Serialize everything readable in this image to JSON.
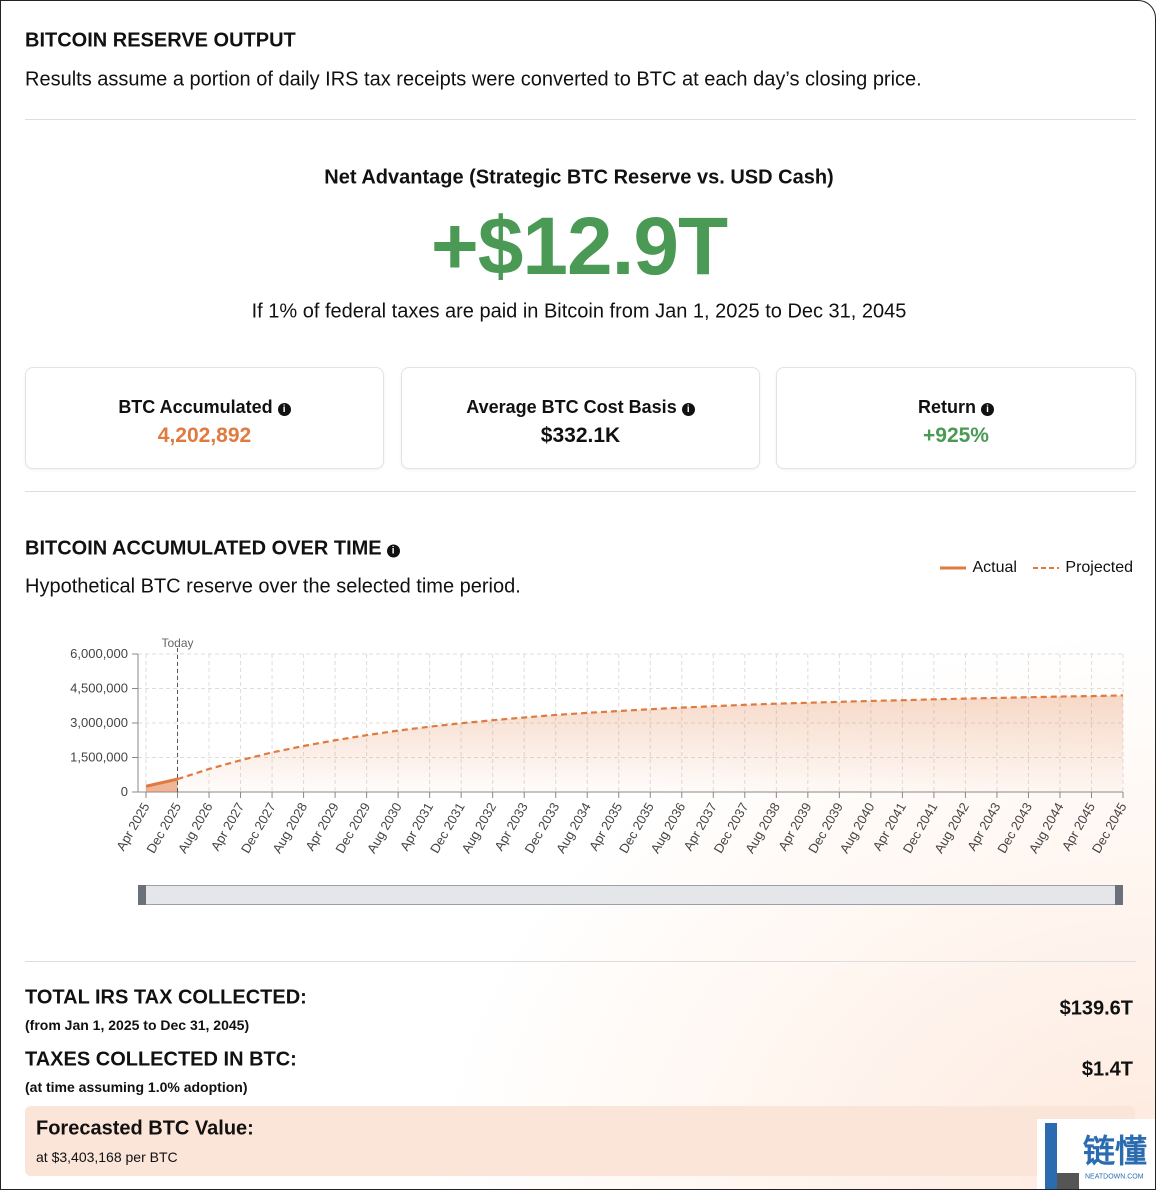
{
  "header": {
    "title": "BITCOIN RESERVE OUTPUT",
    "subtitle": "Results assume a portion of daily IRS tax receipts were converted to BTC at each day’s closing price."
  },
  "net_advantage": {
    "label": "Net Advantage (Strategic BTC Reserve vs. USD Cash)",
    "value": "+$12.9T",
    "note": "If 1% of federal taxes are paid in Bitcoin from Jan 1, 2025 to Dec 31, 2045"
  },
  "stats": [
    {
      "label": "BTC Accumulated",
      "value": "4,202,892"
    },
    {
      "label": "Average BTC Cost Basis",
      "value": "$332.1K"
    },
    {
      "label": "Return",
      "value": "+925%"
    }
  ],
  "chart_data": {
    "type": "line",
    "title": "BITCOIN ACCUMULATED OVER TIME",
    "subtitle": "Hypothetical BTC reserve over the selected time period.",
    "annotation": "Today",
    "categories": [
      "Apr 2025",
      "Dec 2025",
      "Aug 2026",
      "Apr 2027",
      "Dec 2027",
      "Aug 2028",
      "Apr 2029",
      "Dec 2029",
      "Aug 2030",
      "Apr 2031",
      "Dec 2031",
      "Aug 2032",
      "Apr 2033",
      "Dec 2033",
      "Aug 2034",
      "Apr 2035",
      "Dec 2035",
      "Aug 2036",
      "Apr 2037",
      "Dec 2037",
      "Aug 2038",
      "Apr 2039",
      "Dec 2039",
      "Aug 2040",
      "Apr 2041",
      "Dec 2041",
      "Aug 2042",
      "Apr 2043",
      "Dec 2043",
      "Aug 2044",
      "Apr 2045",
      "Dec 2045"
    ],
    "series": [
      {
        "name": "Actual",
        "color": "#e07a3f",
        "values": [
          250000,
          560000,
          null,
          null,
          null,
          null,
          null,
          null,
          null,
          null,
          null,
          null,
          null,
          null,
          null,
          null,
          null,
          null,
          null,
          null,
          null,
          null,
          null,
          null,
          null,
          null,
          null,
          null,
          null,
          null,
          null,
          null
        ]
      },
      {
        "name": "Projected",
        "color": "#e07a3f",
        "values": [
          null,
          560000,
          1000000,
          1380000,
          1720000,
          2000000,
          2250000,
          2470000,
          2670000,
          2840000,
          2990000,
          3120000,
          3240000,
          3350000,
          3440000,
          3520000,
          3600000,
          3670000,
          3730000,
          3790000,
          3840000,
          3880000,
          3920000,
          3960000,
          3990000,
          4030000,
          4060000,
          4090000,
          4120000,
          4150000,
          4170000,
          4200000
        ]
      }
    ],
    "ylim": [
      0,
      6000000
    ],
    "yticks": [
      0,
      {
        "value": 1500000,
        "label": "1,500,000"
      },
      {
        "value": 3000000,
        "label": "3,000,000"
      },
      {
        "value": 4500000,
        "label": "4,500,000"
      },
      {
        "value": 6000000,
        "label": "6,000,000"
      }
    ],
    "grid": true,
    "legend": "top-right"
  },
  "summary": [
    {
      "label": "TOTAL IRS TAX COLLECTED:",
      "note": "(from Jan 1, 2025 to Dec 31, 2045)",
      "value": "$139.6T"
    },
    {
      "label": "TAXES COLLECTED IN BTC:",
      "note": "(at time assuming 1.0% adoption)",
      "value": "$1.4T"
    }
  ],
  "forecast": {
    "label": "Forecasted BTC Value:",
    "note": "at $3,403,168 per BTC"
  },
  "watermark": {
    "text": "链懂",
    "sub": "NEATDOWN.COM"
  }
}
